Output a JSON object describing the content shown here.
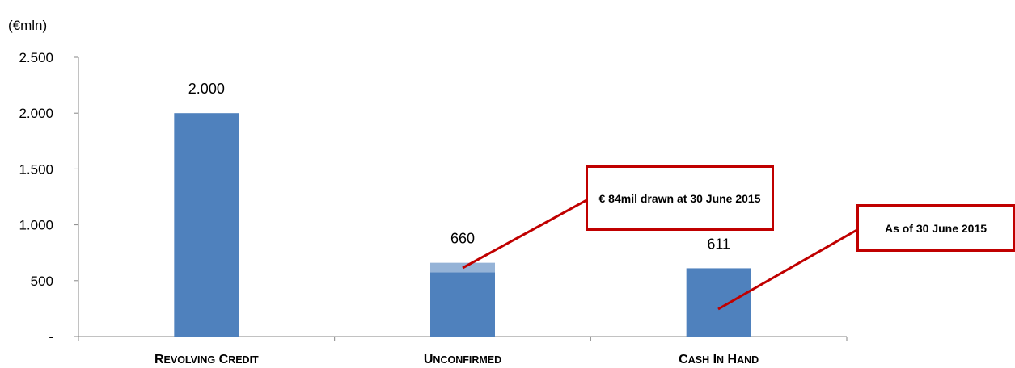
{
  "chart_data": {
    "type": "bar",
    "unit_label": "(€mln)",
    "categories": [
      "REVOLVING CREDIT",
      "UNCONFIRMED",
      "CASH IN HAND"
    ],
    "values": [
      2000,
      660,
      611
    ],
    "value_labels": [
      "2.000",
      "660",
      "611"
    ],
    "highlight": {
      "category": "UNCONFIRMED",
      "from": 576,
      "to": 660
    },
    "ylim": [
      0,
      2500
    ],
    "yticks": [
      0,
      500,
      1000,
      1500,
      2000,
      2500
    ],
    "ytick_labels": [
      "-",
      "500",
      "1.000",
      "1.500",
      "2.000",
      "2.500"
    ],
    "grid": false,
    "colors": {
      "bar": "#4f81bd",
      "bar_highlight": "#95b3d7",
      "callout": "#c00000",
      "axis": "#868686"
    },
    "annotations": [
      {
        "text": "€ 84mil drawn at 30 June 2015",
        "target": "UNCONFIRMED"
      },
      {
        "text": "As of 30 June 2015",
        "target": "CASH IN HAND"
      }
    ]
  }
}
